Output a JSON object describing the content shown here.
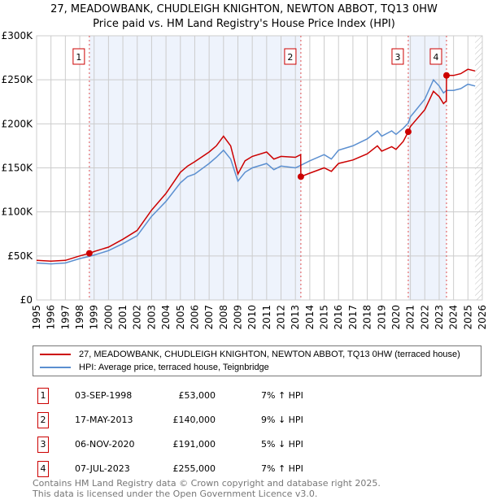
{
  "title_line1": "27, MEADOWBANK, CHUDLEIGH KNIGHTON, NEWTON ABBOT, TQ13 0HW",
  "title_line2": "Price paid vs. HM Land Registry's House Price Index (HPI)",
  "legend": [
    {
      "label": "27, MEADOWBANK, CHUDLEIGH KNIGHTON, NEWTON ABBOT, TQ13 0HW (terraced house)",
      "color": "#cc0000"
    },
    {
      "label": "HPI: Average price, terraced house, Teignbridge",
      "color": "#5b8fd0"
    }
  ],
  "sales": [
    {
      "num": "1",
      "date": "03-SEP-1998",
      "price": "£53,000",
      "hpi": "7% ↑ HPI"
    },
    {
      "num": "2",
      "date": "17-MAY-2013",
      "price": "£140,000",
      "hpi": "9% ↓ HPI"
    },
    {
      "num": "3",
      "date": "06-NOV-2020",
      "price": "£191,000",
      "hpi": "5% ↓ HPI"
    },
    {
      "num": "4",
      "date": "07-JUL-2023",
      "price": "£255,000",
      "hpi": "7% ↑ HPI"
    }
  ],
  "footer1": "Contains HM Land Registry data © Crown copyright and database right 2025.",
  "footer2": "This data is licensed under the Open Government Licence v3.0.",
  "chart_data": {
    "type": "line",
    "xlim": [
      1995,
      2026
    ],
    "ylim": [
      0,
      300000
    ],
    "yticks": [
      {
        "v": 0,
        "l": "£0"
      },
      {
        "v": 50000,
        "l": "£50K"
      },
      {
        "v": 100000,
        "l": "£100K"
      },
      {
        "v": 150000,
        "l": "£150K"
      },
      {
        "v": 200000,
        "l": "£200K"
      },
      {
        "v": 250000,
        "l": "£250K"
      },
      {
        "v": 300000,
        "l": "£300K"
      }
    ],
    "xticks": [
      1995,
      1996,
      1997,
      1998,
      1999,
      2000,
      2001,
      2002,
      2003,
      2004,
      2005,
      2006,
      2007,
      2008,
      2009,
      2010,
      2011,
      2012,
      2013,
      2014,
      2015,
      2016,
      2017,
      2018,
      2019,
      2020,
      2021,
      2022,
      2023,
      2024,
      2025,
      2026
    ],
    "sale_points": [
      {
        "x": 1998.67,
        "y": 53000,
        "label": "1"
      },
      {
        "x": 2013.38,
        "y": 140000,
        "label": "2"
      },
      {
        "x": 2020.85,
        "y": 191000,
        "label": "3"
      },
      {
        "x": 2023.51,
        "y": 255000,
        "label": "4"
      }
    ],
    "shaded_ranges": [
      [
        1998.67,
        2013.38
      ],
      [
        2020.85,
        2023.51
      ]
    ],
    "forecast_from": 2025.5,
    "series": [
      {
        "name": "HPI",
        "color": "#5b8fd0",
        "x": [
          1995,
          1996,
          1997,
          1998,
          1998.67,
          1999,
          2000,
          2001,
          2002,
          2003,
          2004,
          2005,
          2005.5,
          2006,
          2007,
          2007.5,
          2008,
          2008.5,
          2009,
          2009.5,
          2010,
          2011,
          2011.5,
          2012,
          2013,
          2013.38,
          2014,
          2015,
          2015.5,
          2016,
          2017,
          2018,
          2018.7,
          2019,
          2019.7,
          2020,
          2020.5,
          2020.85,
          2021,
          2022,
          2022.6,
          2023,
          2023.3,
          2023.51,
          2024,
          2024.5,
          2025,
          2025.5
        ],
        "y": [
          42000,
          41000,
          42000,
          47000,
          49500,
          51000,
          56000,
          64000,
          73000,
          95000,
          112000,
          133000,
          140000,
          143000,
          155000,
          162000,
          170000,
          160000,
          135000,
          145000,
          150000,
          155000,
          148000,
          152000,
          150000,
          153000,
          158000,
          165000,
          160000,
          170000,
          175000,
          183000,
          192000,
          186000,
          192000,
          188000,
          195000,
          201000,
          208000,
          228000,
          250000,
          243000,
          235000,
          238000,
          238000,
          240000,
          245000,
          243000
        ]
      },
      {
        "name": "Price paid",
        "color": "#cc0000",
        "x": [
          1995,
          1996,
          1997,
          1998,
          1998.67,
          1999,
          2000,
          2001,
          2002,
          2003,
          2004,
          2005,
          2005.5,
          2006,
          2007,
          2007.5,
          2008,
          2008.5,
          2009,
          2009.5,
          2010,
          2011,
          2011.5,
          2012,
          2013,
          2013.37,
          2013.38,
          2014,
          2015,
          2015.5,
          2016,
          2017,
          2018,
          2018.7,
          2019,
          2019.7,
          2020,
          2020.5,
          2020.85,
          2021,
          2022,
          2022.6,
          2023,
          2023.3,
          2023.5,
          2023.51,
          2024,
          2024.5,
          2025,
          2025.5
        ],
        "y": [
          45000,
          44000,
          45000,
          50000,
          53000,
          55000,
          60000,
          69000,
          79000,
          102000,
          121000,
          145000,
          152000,
          157000,
          168000,
          175000,
          186000,
          175000,
          143000,
          158000,
          163000,
          168000,
          160000,
          163000,
          162000,
          165000,
          140000,
          144000,
          150000,
          146000,
          155000,
          159000,
          166000,
          175000,
          169000,
          174000,
          171000,
          180000,
          191000,
          197000,
          216000,
          237000,
          231000,
          223000,
          226000,
          255000,
          255000,
          257000,
          262000,
          260000
        ]
      }
    ]
  }
}
